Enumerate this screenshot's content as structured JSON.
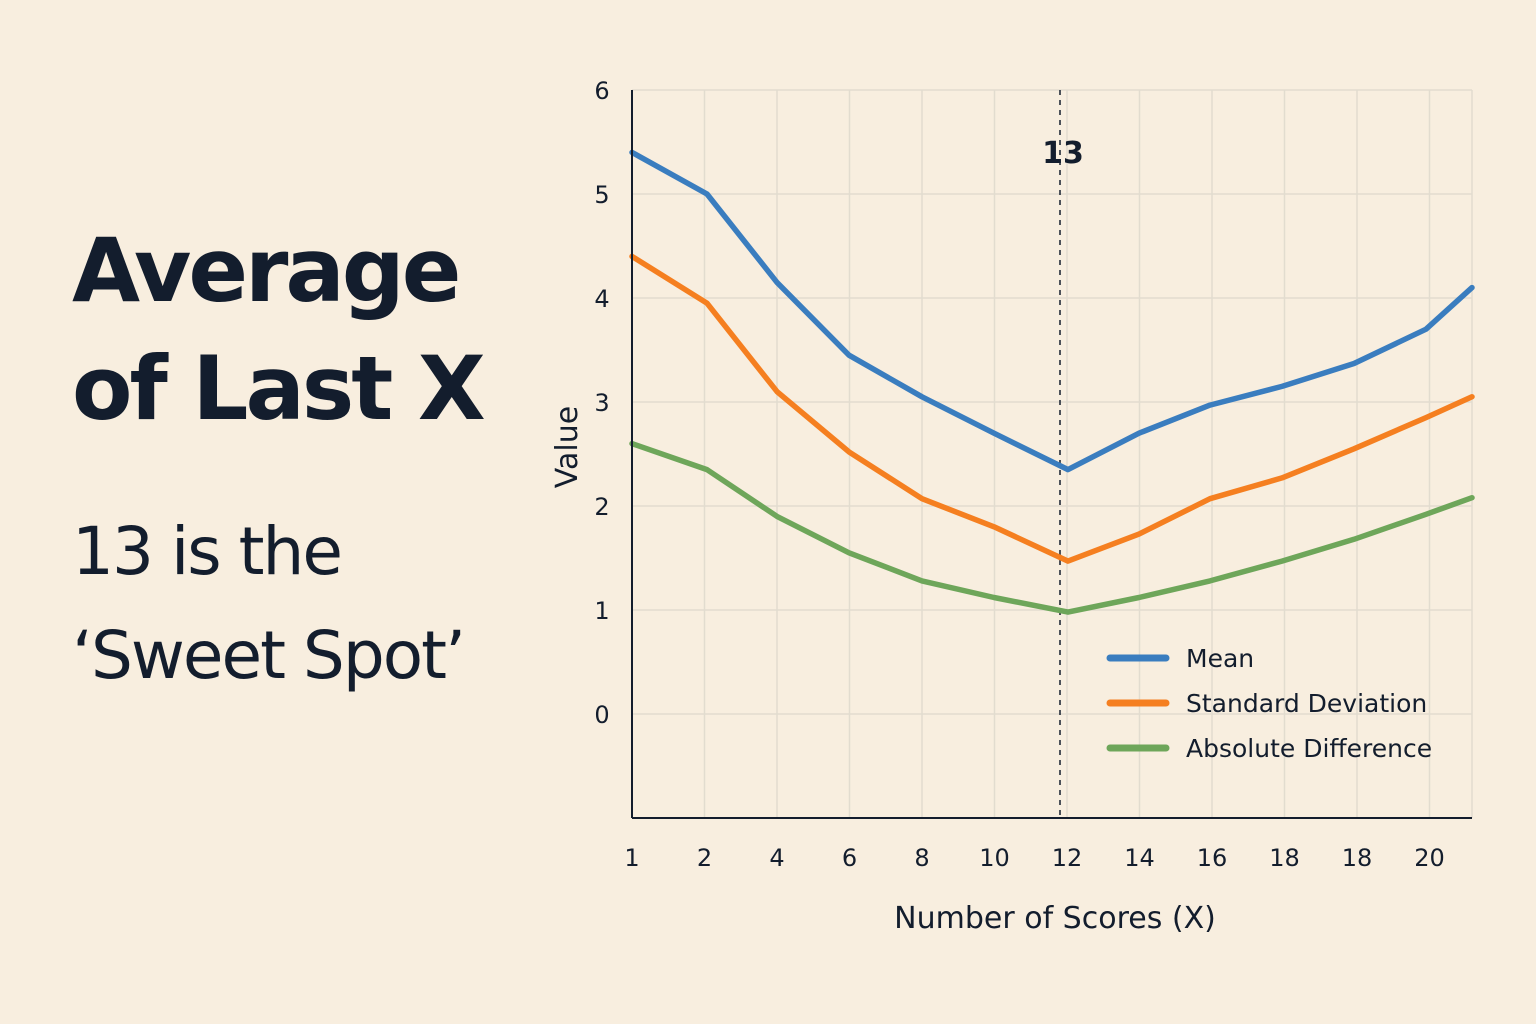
{
  "headline": {
    "line1": "Average",
    "line2": "of Last X"
  },
  "subtitle": {
    "line1": "13 is the",
    "line2": "‘Sweet Spot’"
  },
  "colors": {
    "background": "#f8eedf",
    "text": "#131d2d",
    "grid": "#e2dccf",
    "mean": "#3a7dbf",
    "std": "#f57f20",
    "absdiff": "#6ea65a"
  },
  "chart_data": {
    "type": "line",
    "xlabel": "Number of Scores (X)",
    "ylabel": "Value",
    "x_tick_labels": [
      "1",
      "2",
      "4",
      "6",
      "8",
      "10",
      "12",
      "14",
      "16",
      "18",
      "18",
      "20"
    ],
    "y_ticks": [
      0,
      1,
      2,
      3,
      4,
      5,
      6
    ],
    "ylim": [
      -1,
      6
    ],
    "grid": true,
    "legend_position": "bottom-right",
    "marker": {
      "label": "13",
      "at_tick_label": "12",
      "style": "dashed vertical line"
    },
    "series": [
      {
        "name": "Mean",
        "color": "#3a7dbf",
        "values": [
          5.4,
          5.0,
          4.15,
          3.45,
          3.05,
          2.7,
          2.35,
          2.7,
          2.97,
          3.15,
          3.37,
          3.7,
          4.1
        ]
      },
      {
        "name": "Standard Deviation",
        "color": "#f57f20",
        "values": [
          4.4,
          3.95,
          3.1,
          2.52,
          2.07,
          1.8,
          1.47,
          1.73,
          2.07,
          2.27,
          2.55,
          2.85,
          3.05
        ]
      },
      {
        "name": "Absolute Difference",
        "color": "#6ea65a",
        "values": [
          2.6,
          2.35,
          1.9,
          1.55,
          1.28,
          1.12,
          0.98,
          1.12,
          1.28,
          1.47,
          1.68,
          1.92,
          2.08
        ]
      }
    ]
  }
}
